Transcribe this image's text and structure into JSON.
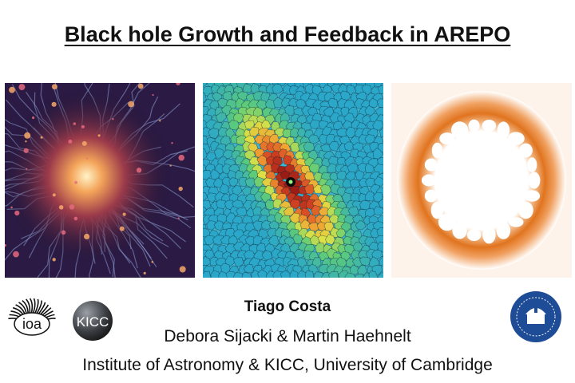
{
  "slide": {
    "title": "Black hole Growth and Feedback in AREPO",
    "author": "Tiago Costa",
    "collaborators": "Debora Sijacki & Martin Haehnelt",
    "institution": "Institute of Astronomy & KICC, University of Cambridge"
  },
  "logos": {
    "ioa_text": "ioa",
    "kicc_text": "KICC"
  },
  "colors": {
    "background": "#ffffff",
    "text": "#111111",
    "cosmic_web": "#2a1a44",
    "mesh_low": "#2aa7c9",
    "mesh_high": "#c4291e",
    "shell": "#e0741f",
    "cam_logo": "#1f4c96"
  }
}
